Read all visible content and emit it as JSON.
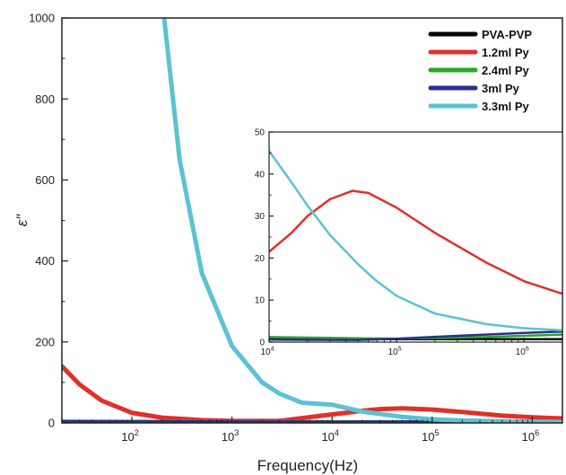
{
  "chart_data": [
    {
      "type": "line",
      "title": "",
      "xlabel": "Frequency(Hz)",
      "ylabel": "ε″",
      "xscale": "log",
      "xlim": [
        20,
        2000000
      ],
      "ylim": [
        0,
        1000
      ],
      "x_ticks": [
        {
          "value": 100,
          "base": "10",
          "exp": "2"
        },
        {
          "value": 1000,
          "base": "10",
          "exp": "3"
        },
        {
          "value": 10000,
          "base": "10",
          "exp": "4"
        },
        {
          "value": 100000,
          "base": "10",
          "exp": "5"
        },
        {
          "value": 1000000,
          "base": "10",
          "exp": "6"
        }
      ],
      "y_ticks": [
        "0",
        "200",
        "400",
        "600",
        "800",
        "1000"
      ],
      "legend_position": "top-right",
      "series": [
        {
          "name": "PVA-PVP",
          "color": "#000000",
          "x": [
            20,
            100,
            1000,
            10000,
            50000,
            100000,
            1000000,
            2000000
          ],
          "y": [
            2,
            1.5,
            1,
            1,
            1,
            1,
            1,
            1
          ]
        },
        {
          "name": "1.2ml Py",
          "color": "#e0302a",
          "x": [
            20,
            30,
            50,
            100,
            200,
            500,
            1000,
            3000,
            10000,
            20000,
            30000,
            50000,
            100000,
            200000,
            500000,
            1000000,
            2000000
          ],
          "y": [
            140,
            95,
            55,
            25,
            13,
            7,
            5,
            5,
            21,
            30,
            34,
            36,
            33,
            27,
            18,
            14,
            11
          ]
        },
        {
          "name": "2.4ml Py",
          "color": "#2aa52a",
          "x": [
            20,
            100,
            1000,
            10000,
            100000,
            1000000,
            2000000
          ],
          "y": [
            3,
            2.5,
            2,
            1.5,
            1,
            1.5,
            1.8
          ]
        },
        {
          "name": "3ml Py",
          "color": "#2e2e8c",
          "x": [
            20,
            100,
            1000,
            10000,
            100000,
            1000000,
            2000000
          ],
          "y": [
            1,
            1,
            1,
            0.5,
            1,
            2,
            2.5
          ]
        },
        {
          "name": "3.3ml Py",
          "color": "#5cc2d4",
          "x": [
            210,
            300,
            500,
            1000,
            2000,
            3000,
            5000,
            10000,
            20000,
            50000,
            100000,
            200000,
            500000,
            1000000,
            2000000
          ],
          "y": [
            1000,
            650,
            370,
            190,
            100,
            72,
            50,
            45,
            28,
            15,
            9,
            6,
            4,
            3,
            2.5
          ]
        }
      ]
    },
    {
      "type": "line",
      "title": "",
      "xscale": "log",
      "xlim": [
        10000,
        2000000
      ],
      "ylim": [
        0,
        50
      ],
      "x_ticks": [
        {
          "value": 10000,
          "base": "10",
          "exp": "4"
        },
        {
          "value": 100000,
          "base": "10",
          "exp": "5"
        },
        {
          "value": 1000000,
          "base": "10",
          "exp": "6"
        }
      ],
      "y_ticks": [
        "0",
        "10",
        "20",
        "30",
        "40",
        "50"
      ],
      "series": [
        {
          "name": "PVA-PVP",
          "color": "#000000",
          "x": [
            10000,
            100000,
            1000000,
            2000000
          ],
          "y": [
            0.8,
            0.7,
            0.7,
            0.7
          ]
        },
        {
          "name": "1.2ml Py",
          "color": "#e0302a",
          "x": [
            10000,
            15000,
            20000,
            30000,
            45000,
            60000,
            100000,
            200000,
            500000,
            1000000,
            2000000
          ],
          "y": [
            21.5,
            26,
            30,
            34,
            36,
            35.5,
            32,
            26,
            19,
            14.5,
            11.5
          ]
        },
        {
          "name": "2.4ml Py",
          "color": "#2aa52a",
          "x": [
            10000,
            50000,
            100000,
            500000,
            1000000,
            2000000
          ],
          "y": [
            1.2,
            0.9,
            0.8,
            1.2,
            1.5,
            1.8
          ]
        },
        {
          "name": "3ml Py",
          "color": "#2e2e8c",
          "x": [
            10000,
            50000,
            100000,
            300000,
            1000000,
            2000000
          ],
          "y": [
            0.6,
            0.5,
            0.8,
            1.5,
            2.2,
            2.5
          ]
        },
        {
          "name": "3.3ml Py",
          "color": "#5cc2d4",
          "x": [
            10000,
            15000,
            20000,
            30000,
            50000,
            70000,
            100000,
            200000,
            500000,
            1000000,
            2000000
          ],
          "y": [
            45.5,
            38,
            32.5,
            25.5,
            18.5,
            14.5,
            11,
            6.8,
            4.3,
            3.3,
            2.8
          ]
        }
      ]
    }
  ]
}
